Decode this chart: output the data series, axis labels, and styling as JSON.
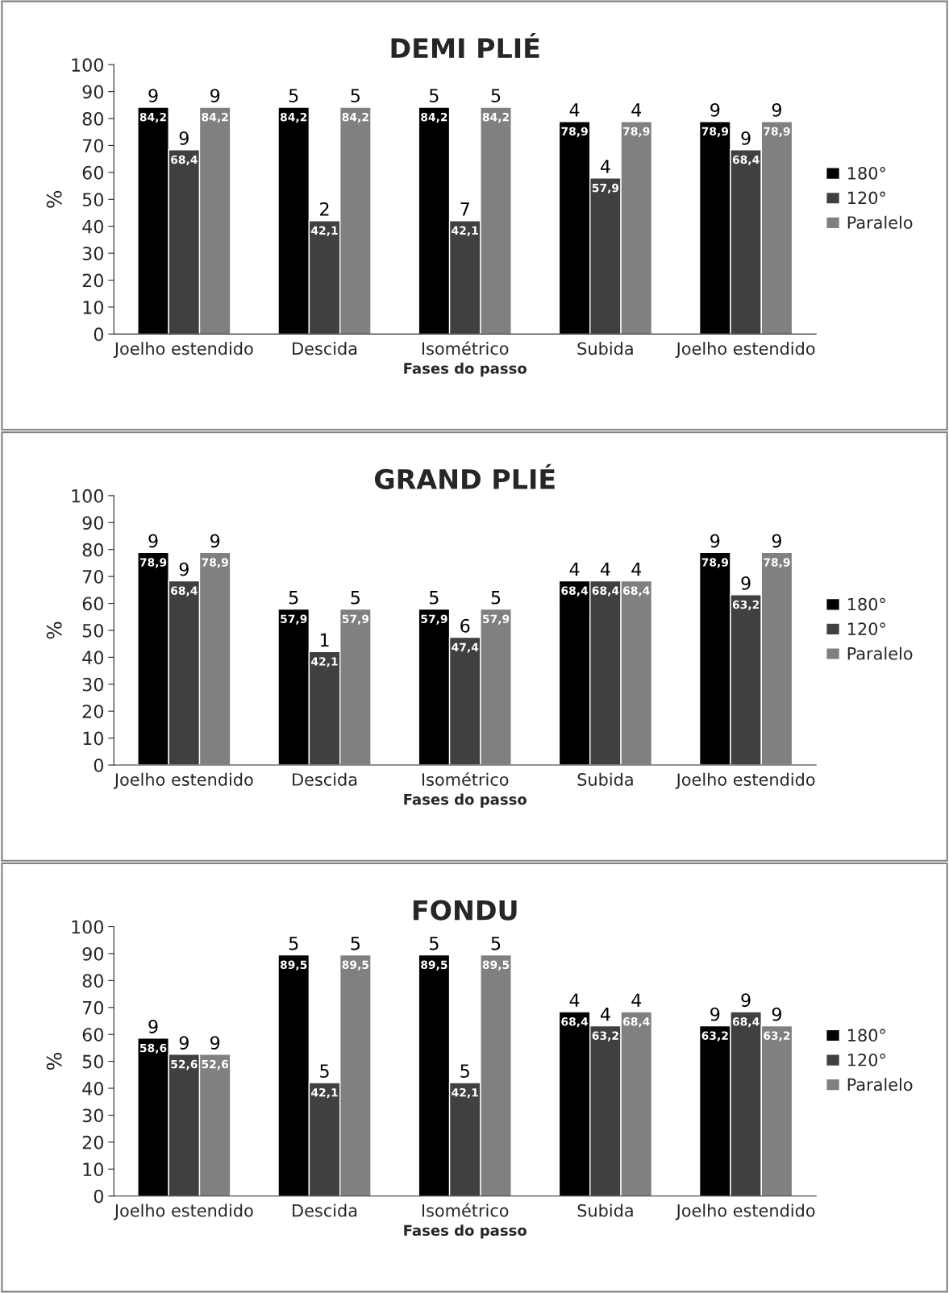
{
  "chart_data": [
    {
      "type": "bar",
      "title": "DEMI PLIÉ",
      "xlabel": "Fases do passo",
      "ylabel": "%",
      "categories": [
        "Joelho estendido",
        "Descida",
        "Isométrico",
        "Subida",
        "Joelho estendido"
      ],
      "ylim": [
        0,
        100
      ],
      "yticks": [
        0,
        10,
        20,
        30,
        40,
        50,
        60,
        70,
        80,
        90,
        100
      ],
      "legend": "right",
      "grid": false,
      "series": [
        {
          "name": "180°",
          "color": "#000000",
          "values": [
            84.2,
            84.2,
            84.2,
            78.9,
            78.9
          ],
          "value_labels": [
            "84,2",
            "84,2",
            "84,2",
            "78,9",
            "78,9"
          ]
        },
        {
          "name": "120°",
          "color": "#404040",
          "values": [
            68.4,
            42.1,
            42.1,
            57.9,
            68.4
          ],
          "value_labels": [
            "68,4",
            "42,1",
            "42,1",
            "57,9",
            "68,4"
          ]
        },
        {
          "name": "Paralelo",
          "color": "#808080",
          "values": [
            84.2,
            84.2,
            84.2,
            78.9,
            78.9
          ],
          "value_labels": [
            "84,2",
            "84,2",
            "84,2",
            "78,9",
            "78,9"
          ]
        }
      ],
      "annotations": [
        "9",
        "9",
        "9",
        "5",
        "2",
        "5",
        "5",
        "7",
        "5",
        "4",
        "4",
        "4",
        "9",
        "9",
        "9"
      ]
    },
    {
      "type": "bar",
      "title": "GRAND PLIÉ",
      "xlabel": "Fases do passo",
      "ylabel": "%",
      "categories": [
        "Joelho estendido",
        "Descida",
        "Isométrico",
        "Subida",
        "Joelho estendido"
      ],
      "ylim": [
        0,
        100
      ],
      "yticks": [
        0,
        10,
        20,
        30,
        40,
        50,
        60,
        70,
        80,
        90,
        100
      ],
      "legend": "right",
      "grid": false,
      "series": [
        {
          "name": "180°",
          "color": "#000000",
          "values": [
            78.9,
            57.9,
            57.9,
            68.4,
            78.9
          ],
          "value_labels": [
            "78,9",
            "57,9",
            "57,9",
            "68,4",
            "78,9"
          ]
        },
        {
          "name": "120°",
          "color": "#404040",
          "values": [
            68.4,
            42.1,
            47.4,
            68.4,
            63.2
          ],
          "value_labels": [
            "68,4",
            "42,1",
            "47,4",
            "68,4",
            "63,2"
          ]
        },
        {
          "name": "Paralelo",
          "color": "#808080",
          "values": [
            78.9,
            57.9,
            57.9,
            68.4,
            78.9
          ],
          "value_labels": [
            "78,9",
            "57,9",
            "57,9",
            "68,4",
            "78,9"
          ]
        }
      ],
      "annotations": [
        "9",
        "9",
        "9",
        "5",
        "1",
        "5",
        "5",
        "6",
        "5",
        "4",
        "4",
        "4",
        "9",
        "9",
        "9"
      ]
    },
    {
      "type": "bar",
      "title": "FONDU",
      "xlabel": "Fases do passo",
      "ylabel": "%",
      "categories": [
        "Joelho estendido",
        "Descida",
        "Isométrico",
        "Subida",
        "Joelho estendido"
      ],
      "ylim": [
        0,
        100
      ],
      "yticks": [
        0,
        10,
        20,
        30,
        40,
        50,
        60,
        70,
        80,
        90,
        100
      ],
      "legend": "right",
      "grid": false,
      "series": [
        {
          "name": "180°",
          "color": "#000000",
          "values": [
            58.6,
            89.5,
            89.5,
            68.4,
            63.2
          ],
          "value_labels": [
            "58,6",
            "89,5",
            "89,5",
            "68,4",
            "63,2"
          ]
        },
        {
          "name": "120°",
          "color": "#404040",
          "values": [
            52.6,
            42.1,
            42.1,
            63.2,
            68.4
          ],
          "value_labels": [
            "52,6",
            "42,1",
            "42,1",
            "63,2",
            "68,4"
          ]
        },
        {
          "name": "Paralelo",
          "color": "#808080",
          "values": [
            52.6,
            89.5,
            89.5,
            68.4,
            63.2
          ],
          "value_labels": [
            "52,6",
            "89,5",
            "89,5",
            "68,4",
            "63,2"
          ]
        }
      ],
      "annotations": [
        "9",
        "9",
        "9",
        "5",
        "5",
        "5",
        "5",
        "5",
        "5",
        "4",
        "4",
        "4",
        "9",
        "9",
        "9"
      ]
    }
  ]
}
